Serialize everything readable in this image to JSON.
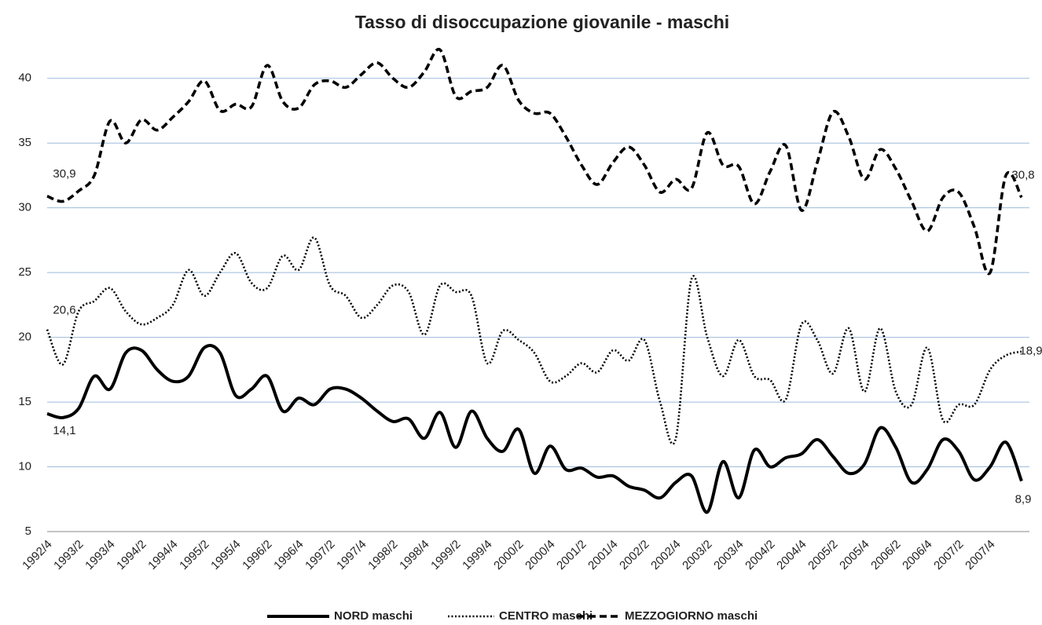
{
  "chart_data": {
    "type": "line",
    "title": "Tasso di disoccupazione giovanile - maschi",
    "categories": [
      "1992/4",
      null,
      "1993/2",
      null,
      "1993/4",
      null,
      "1994/2",
      null,
      "1994/4",
      null,
      "1995/2",
      null,
      "1995/4",
      null,
      "1996/2",
      null,
      "1996/4",
      null,
      "1997/2",
      null,
      "1997/4",
      null,
      "1998/2",
      null,
      "1998/4",
      null,
      "1999/2",
      null,
      "1999/4",
      null,
      "2000/2",
      null,
      "2000/4",
      null,
      "2001/2",
      null,
      "2001/4",
      null,
      "2002/2",
      null,
      "2002/4",
      null,
      "2003/2",
      null,
      "2003/4",
      null,
      "2004/2",
      null,
      "2004/4",
      null,
      "2005/2",
      null,
      "2005/4",
      null,
      "2006/2",
      null,
      "2006/4",
      null,
      "2007/2",
      null,
      "2007/4",
      null,
      null
    ],
    "series": [
      {
        "name": "NORD maschi",
        "color": "#000000",
        "dash": "solid",
        "values": [
          14.1,
          13.8,
          14.5,
          17.0,
          16.0,
          18.8,
          19.0,
          17.5,
          16.6,
          17.0,
          19.2,
          18.8,
          15.5,
          16.0,
          17.0,
          14.3,
          15.3,
          14.8,
          16.0,
          16.0,
          15.3,
          14.3,
          13.5,
          13.7,
          12.2,
          14.2,
          11.5,
          14.3,
          12.2,
          11.2,
          12.9,
          9.5,
          11.6,
          9.8,
          9.9,
          9.2,
          9.3,
          8.5,
          8.2,
          7.6,
          8.8,
          9.3,
          6.5,
          10.4,
          7.6,
          11.3,
          10.0,
          10.7,
          11.0,
          12.1,
          10.8,
          9.5,
          10.2,
          13.0,
          11.5,
          8.8,
          9.8,
          12.1,
          11.2,
          9.0,
          10.0,
          11.9,
          8.9
        ],
        "value_labels": [
          "14,1",
          null,
          null,
          null,
          null,
          null,
          null,
          null,
          null,
          null,
          null,
          null,
          null,
          null,
          null,
          null,
          null,
          null,
          null,
          null,
          null,
          null,
          null,
          null,
          null,
          null,
          null,
          null,
          null,
          null,
          null,
          null,
          null,
          null,
          null,
          null,
          null,
          null,
          null,
          null,
          null,
          null,
          null,
          null,
          null,
          null,
          null,
          null,
          null,
          null,
          null,
          null,
          null,
          null,
          null,
          null,
          null,
          null,
          null,
          null,
          null,
          null,
          "8,9"
        ]
      },
      {
        "name": "CENTRO maschi",
        "color": "#000000",
        "dash": "dotted",
        "values": [
          20.6,
          17.9,
          22.0,
          22.8,
          23.8,
          22.0,
          21.0,
          21.5,
          22.5,
          25.2,
          23.2,
          25.0,
          26.5,
          24.2,
          23.8,
          26.3,
          25.2,
          27.7,
          24.0,
          23.2,
          21.5,
          22.5,
          24.0,
          23.5,
          20.2,
          24.0,
          23.5,
          23.2,
          18.0,
          20.5,
          19.8,
          18.8,
          16.6,
          17.0,
          18.0,
          17.3,
          19.0,
          18.2,
          19.8,
          15.0,
          12.2,
          24.5,
          20.0,
          17.0,
          19.8,
          17.0,
          16.7,
          15.2,
          21.0,
          19.8,
          17.2,
          20.7,
          15.8,
          20.7,
          15.8,
          14.8,
          19.2,
          13.6,
          14.8,
          14.8,
          17.5,
          18.6,
          18.9
        ],
        "value_labels": [
          "20,6",
          null,
          null,
          null,
          null,
          null,
          null,
          null,
          null,
          null,
          null,
          null,
          null,
          null,
          null,
          null,
          null,
          null,
          null,
          null,
          null,
          null,
          null,
          null,
          null,
          null,
          null,
          null,
          null,
          null,
          null,
          null,
          null,
          null,
          null,
          null,
          null,
          null,
          null,
          null,
          null,
          null,
          null,
          null,
          null,
          null,
          null,
          null,
          null,
          null,
          null,
          null,
          null,
          null,
          null,
          null,
          null,
          null,
          null,
          null,
          null,
          null,
          "18,9"
        ]
      },
      {
        "name": "MEZZOGIORNO maschi",
        "color": "#000000",
        "dash": "dashed",
        "values": [
          30.9,
          30.5,
          31.3,
          32.5,
          36.7,
          35.0,
          36.8,
          36.0,
          37.0,
          38.2,
          39.8,
          37.5,
          38.0,
          37.8,
          41.0,
          38.2,
          37.7,
          39.5,
          39.8,
          39.3,
          40.3,
          41.2,
          40.0,
          39.3,
          40.5,
          42.2,
          38.6,
          39.0,
          39.3,
          41.0,
          38.3,
          37.3,
          37.3,
          35.5,
          33.3,
          31.8,
          33.5,
          34.7,
          33.3,
          31.2,
          32.2,
          31.5,
          35.8,
          33.3,
          33.2,
          30.3,
          32.8,
          34.8,
          29.8,
          33.5,
          37.4,
          35.5,
          32.2,
          34.5,
          33.0,
          30.5,
          28.2,
          30.8,
          31.2,
          28.5,
          25.0,
          32.5,
          30.8
        ],
        "value_labels": [
          "30,9",
          null,
          null,
          null,
          null,
          null,
          null,
          null,
          null,
          null,
          null,
          null,
          null,
          null,
          null,
          null,
          null,
          null,
          null,
          null,
          null,
          null,
          null,
          null,
          null,
          null,
          null,
          null,
          null,
          null,
          null,
          null,
          null,
          null,
          null,
          null,
          null,
          null,
          null,
          null,
          null,
          null,
          null,
          null,
          null,
          null,
          null,
          null,
          null,
          null,
          null,
          null,
          null,
          null,
          null,
          null,
          null,
          null,
          null,
          null,
          null,
          null,
          "30,8"
        ]
      }
    ],
    "ylim": [
      5,
      43.5
    ],
    "yticks": [
      5,
      10,
      15,
      20,
      25,
      30,
      35,
      40
    ],
    "grid": true,
    "legend": "bottom"
  }
}
